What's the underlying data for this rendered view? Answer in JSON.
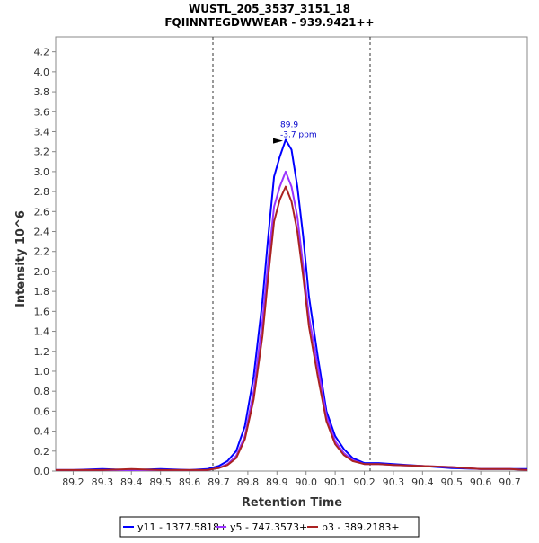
{
  "chart_data": {
    "type": "line",
    "title": "WUSTL_205_3537_3151_18",
    "subtitle": "FQIINNTEGDWWEAR - 939.9421++",
    "xlabel": "Retention Time",
    "ylabel": "Intensity 10^6",
    "xlim": [
      89.14,
      90.76
    ],
    "ylim": [
      0.0,
      4.35
    ],
    "x_ticks": [
      "89.2",
      "89.3",
      "89.4",
      "89.5",
      "89.6",
      "89.7",
      "89.8",
      "89.9",
      "90.0",
      "90.1",
      "90.2",
      "90.3",
      "90.4",
      "90.5",
      "90.6",
      "90.7"
    ],
    "y_ticks": [
      "0.0",
      "0.2",
      "0.4",
      "0.6",
      "0.8",
      "1.0",
      "1.2",
      "1.4",
      "1.6",
      "1.8",
      "2.0",
      "2.2",
      "2.4",
      "2.6",
      "2.8",
      "3.0",
      "3.2",
      "3.4",
      "3.6",
      "3.8",
      "4.0",
      "4.2"
    ],
    "vlines": [
      89.68,
      90.22
    ],
    "grid": false,
    "legend_position": "bottom",
    "annotation": {
      "x": 89.93,
      "y": 3.3,
      "line1": "89.9",
      "line2": "-3.7 ppm",
      "color": "#0000cc"
    },
    "x": [
      89.14,
      89.2,
      89.3,
      89.4,
      89.5,
      89.6,
      89.66,
      89.7,
      89.73,
      89.76,
      89.79,
      89.82,
      89.85,
      89.87,
      89.89,
      89.91,
      89.93,
      89.95,
      89.97,
      89.99,
      90.01,
      90.04,
      90.07,
      90.1,
      90.13,
      90.16,
      90.2,
      90.25,
      90.3,
      90.4,
      90.5,
      90.6,
      90.7,
      90.76
    ],
    "series": [
      {
        "name": "y11 - 1377.5818+",
        "color": "#0000ff",
        "values": [
          0.01,
          0.01,
          0.02,
          0.01,
          0.02,
          0.01,
          0.02,
          0.05,
          0.1,
          0.2,
          0.45,
          0.95,
          1.7,
          2.35,
          2.95,
          3.15,
          3.32,
          3.22,
          2.85,
          2.35,
          1.75,
          1.15,
          0.6,
          0.35,
          0.22,
          0.13,
          0.08,
          0.08,
          0.07,
          0.05,
          0.03,
          0.02,
          0.02,
          0.02
        ]
      },
      {
        "name": "y5 - 747.3573+",
        "color": "#9933ff",
        "values": [
          0.01,
          0.01,
          0.01,
          0.01,
          0.01,
          0.01,
          0.01,
          0.03,
          0.07,
          0.15,
          0.35,
          0.8,
          1.5,
          2.1,
          2.65,
          2.85,
          3.0,
          2.85,
          2.55,
          2.05,
          1.55,
          1.05,
          0.55,
          0.3,
          0.18,
          0.11,
          0.07,
          0.07,
          0.06,
          0.05,
          0.04,
          0.02,
          0.02,
          0.01
        ]
      },
      {
        "name": "b3 - 389.2183+",
        "color": "#aa2222",
        "values": [
          0.01,
          0.01,
          0.01,
          0.02,
          0.01,
          0.01,
          0.01,
          0.03,
          0.06,
          0.13,
          0.32,
          0.72,
          1.35,
          1.95,
          2.5,
          2.72,
          2.85,
          2.7,
          2.4,
          1.95,
          1.45,
          0.95,
          0.5,
          0.27,
          0.16,
          0.1,
          0.07,
          0.07,
          0.06,
          0.05,
          0.04,
          0.02,
          0.02,
          0.01
        ]
      }
    ]
  }
}
